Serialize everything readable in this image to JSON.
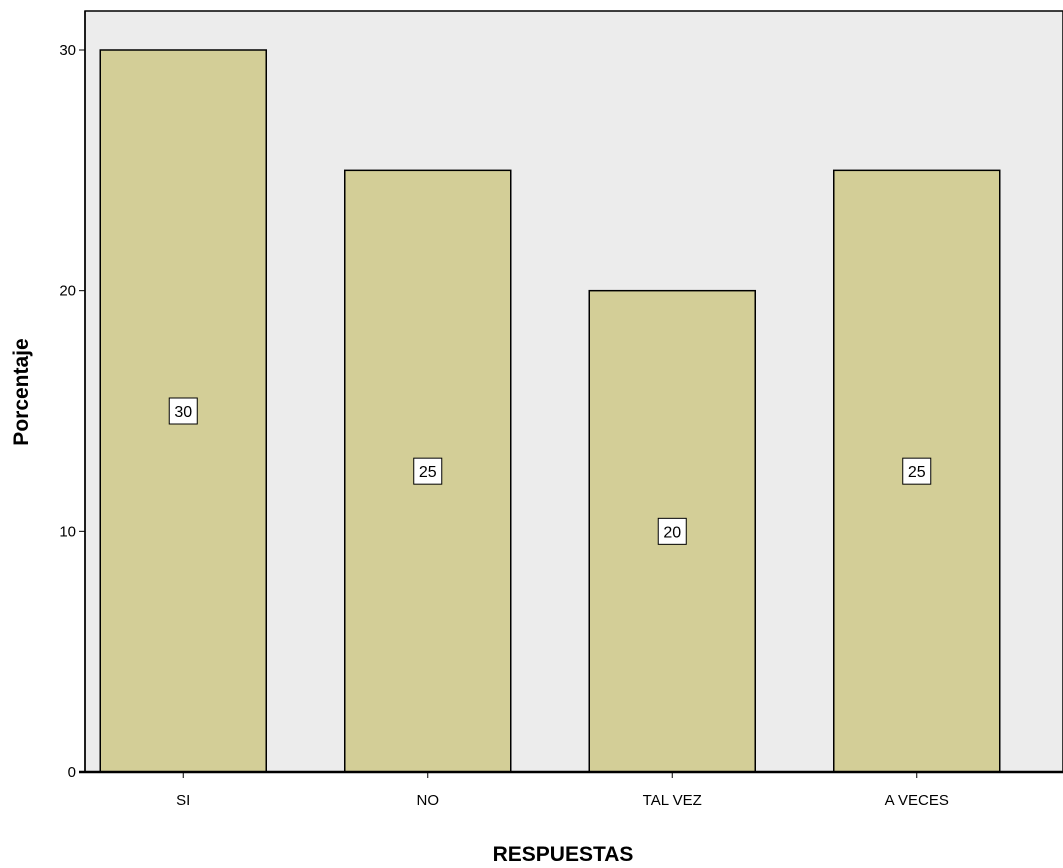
{
  "chart_data": {
    "type": "bar",
    "title": "",
    "xlabel": "RESPUESTAS",
    "ylabel": "Porcentaje",
    "categories": [
      "SI",
      "NO",
      "TAL VEZ",
      "A VECES"
    ],
    "values": [
      30,
      25,
      20,
      25
    ],
    "data_labels": [
      "30",
      "25",
      "20",
      "25"
    ],
    "ylim": [
      0,
      30
    ],
    "yticks": [
      0,
      10,
      20,
      30
    ],
    "grid": false,
    "legend": "none",
    "colors": {
      "bar_fill": "#d3ce97",
      "bar_stroke": "#000000",
      "plot_background": "#ececec",
      "label_box_fill": "#ffffff"
    }
  }
}
